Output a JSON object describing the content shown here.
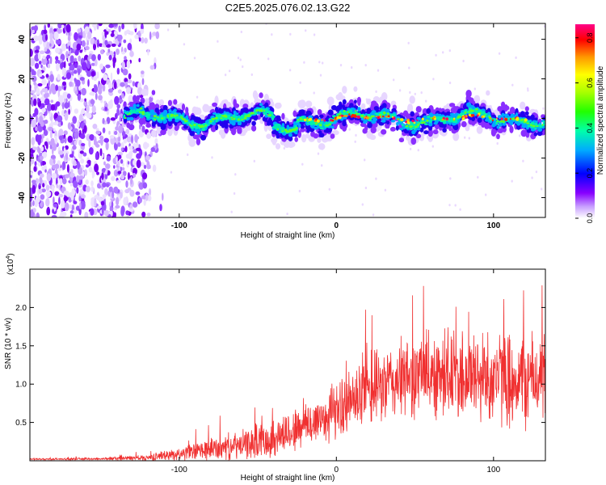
{
  "title": "C2E5.2025.076.02.13.G22",
  "chart_data": [
    {
      "type": "heatmap",
      "xlabel": "Height of straight line (km)",
      "ylabel": "Frequency (Hz)",
      "xlim": [
        -195,
        133
      ],
      "ylim": [
        -50,
        48
      ],
      "x_ticks": [
        -100,
        0,
        100
      ],
      "x_tick_labels": [
        "-100",
        "0",
        "100"
      ],
      "y_ticks": [
        -40,
        -20,
        0,
        20,
        40
      ],
      "y_tick_labels": [
        "-40",
        "-20",
        "0",
        "20",
        "40"
      ],
      "colorbar": {
        "label": "Normalized spectral amplitude",
        "range": [
          0,
          0.86
        ],
        "ticks": [
          0.0,
          0.2,
          0.4,
          0.6,
          0.8
        ],
        "tick_labels": [
          "0.0",
          "0.2",
          "0.4",
          "0.6",
          "0.8"
        ],
        "colormap": [
          "#ffffff",
          "#8800ff",
          "#0000ff",
          "#00ccff",
          "#00ff88",
          "#66ff00",
          "#ffff00",
          "#ff8800",
          "#ff0000",
          "#ff0088"
        ]
      },
      "noise_region": {
        "x": [
          -195,
          -120
        ],
        "y": [
          -50,
          48
        ]
      },
      "signal_band": {
        "x": [
          -135,
          133
        ],
        "center_y": 0,
        "half_width": 5
      }
    },
    {
      "type": "line",
      "xlabel": "Height of straight line (km)",
      "ylabel": "SNR (10 * v/v)",
      "y_multiplier": "(x10",
      "y_multiplier_exp": "4",
      "xlim": [
        -195,
        133
      ],
      "ylim": [
        0,
        25000
      ],
      "x_ticks": [
        -100,
        0,
        100
      ],
      "x_tick_labels": [
        "-100",
        "0",
        "100"
      ],
      "y_ticks": [
        5000,
        10000,
        15000,
        20000
      ],
      "y_tick_labels": [
        "0.5",
        "1.0",
        "1.5",
        "2.0"
      ],
      "series": [
        {
          "color": "#f03030",
          "envelope_x": [
            -195,
            -150,
            -120,
            -100,
            -80,
            -60,
            -40,
            -20,
            0,
            20,
            40,
            60,
            80,
            100,
            120,
            133
          ],
          "envelope_mean": [
            200,
            250,
            400,
            900,
            1500,
            2000,
            3000,
            4500,
            6500,
            9000,
            10500,
            11500,
            11000,
            11000,
            10500,
            11000
          ],
          "envelope_spread": [
            100,
            150,
            400,
            800,
            1500,
            1800,
            2500,
            3000,
            3500,
            4500,
            5000,
            5500,
            6000,
            6000,
            6000,
            5500
          ]
        }
      ]
    }
  ]
}
